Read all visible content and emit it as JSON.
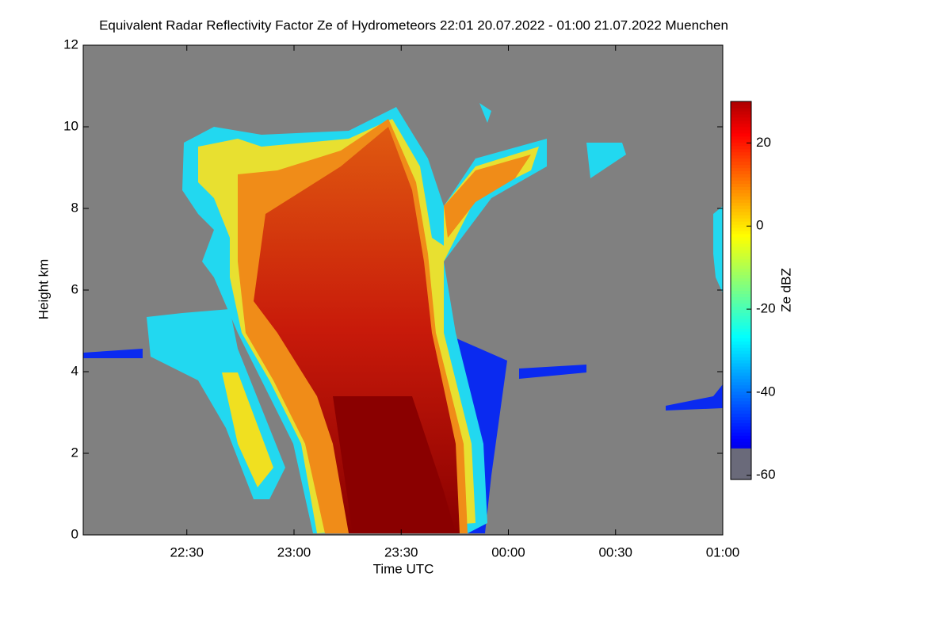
{
  "chart_data": {
    "type": "heatmap",
    "title": "Equivalent Radar Reflectivity Factor Ze of Hydrometeors   22:01 20.07.2022 - 01:00 21.07.2022 Muenchen",
    "x_label": "Time UTC",
    "y_label": "Height km",
    "colorbar_label": "Ze dBZ",
    "xlim": [
      1,
      180
    ],
    "xticks": [
      {
        "value": 30,
        "label": "22:30"
      },
      {
        "value": 60,
        "label": "23:00"
      },
      {
        "value": 90,
        "label": "23:30"
      },
      {
        "value": 120,
        "label": "00:00"
      },
      {
        "value": 150,
        "label": "00:30"
      },
      {
        "value": 180,
        "label": "01:00"
      }
    ],
    "ylim": [
      0,
      12
    ],
    "yticks": [
      0,
      2,
      4,
      6,
      8,
      10,
      12
    ],
    "colormap": "jet",
    "clim": [
      -61,
      30
    ],
    "cticks": [
      -60,
      -40,
      -20,
      0,
      20
    ]
  }
}
